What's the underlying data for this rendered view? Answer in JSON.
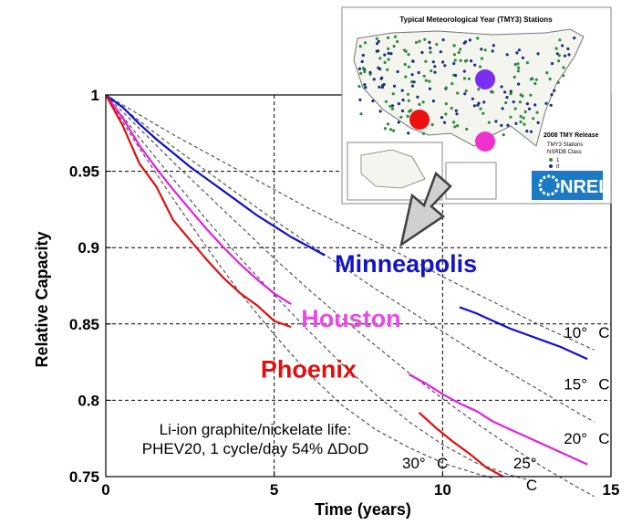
{
  "chart_data": {
    "type": "line",
    "title": "",
    "xlabel": "Time (years)",
    "ylabel": "Relative Capacity",
    "xlim": [
      0,
      15
    ],
    "ylim": [
      0.75,
      1
    ],
    "xticks": [
      0,
      5,
      10,
      15
    ],
    "xtick_labels": [
      "0",
      "5",
      "10",
      "15"
    ],
    "yticks": [
      0.75,
      0.8,
      0.85,
      0.9,
      0.95,
      1
    ],
    "ytick_labels": [
      "0.75",
      "0.8",
      "0.85",
      "0.9",
      "0.95",
      "1"
    ],
    "grid": "dashed at major ticks",
    "series": [
      {
        "name": "Minneapolis",
        "color": "#1010d0",
        "x": [
          0,
          0.5,
          1,
          1.5,
          2,
          2.5,
          3,
          3.5,
          4,
          4.5,
          5,
          5.5,
          6,
          6.5
        ],
        "y": [
          1,
          0.992,
          0.981,
          0.971,
          0.962,
          0.953,
          0.945,
          0.937,
          0.929,
          0.921,
          0.914,
          0.907,
          0.901,
          0.895
        ]
      },
      {
        "name": "Minneapolis (continued)",
        "color": "#1010d0",
        "x": [
          10.5,
          11,
          11.5,
          12,
          12.5,
          13,
          13.5,
          14,
          14.3
        ],
        "y": [
          0.861,
          0.857,
          0.852,
          0.847,
          0.843,
          0.839,
          0.835,
          0.83,
          0.827
        ]
      },
      {
        "name": "Houston",
        "color": "#e020e0",
        "x": [
          0,
          0.5,
          1,
          1.5,
          2,
          2.5,
          3,
          3.5,
          4,
          4.5,
          5,
          5.5
        ],
        "y": [
          1,
          0.985,
          0.967,
          0.952,
          0.938,
          0.925,
          0.912,
          0.9,
          0.889,
          0.879,
          0.87,
          0.863
        ]
      },
      {
        "name": "Houston (continued)",
        "color": "#e020e0",
        "x": [
          9,
          9.5,
          10,
          10.5,
          11,
          11.5,
          12,
          12.5,
          13,
          13.5,
          14,
          14.3
        ],
        "y": [
          0.817,
          0.811,
          0.804,
          0.798,
          0.793,
          0.786,
          0.781,
          0.776,
          0.771,
          0.766,
          0.761,
          0.758
        ]
      },
      {
        "name": "Phoenix",
        "color": "#e01010",
        "x": [
          0,
          0.5,
          1,
          1.5,
          2,
          2.5,
          3,
          3.5,
          4,
          4.5,
          5,
          5.5
        ],
        "y": [
          1,
          0.98,
          0.955,
          0.94,
          0.918,
          0.905,
          0.892,
          0.88,
          0.87,
          0.862,
          0.852,
          0.848
        ]
      },
      {
        "name": "Phoenix (continued)",
        "color": "#e01010",
        "x": [
          9.3,
          9.8,
          10.3,
          10.8,
          11.3,
          11.8
        ],
        "y": [
          0.792,
          0.782,
          0.773,
          0.765,
          0.756,
          0.75
        ]
      },
      {
        "name": "10° C model",
        "color": "#555555",
        "dashed": true,
        "x": [
          0,
          1,
          2,
          3,
          4,
          5,
          6,
          7,
          8,
          9,
          10,
          11,
          12,
          13,
          14,
          14.5
        ],
        "y": [
          1,
          0.987,
          0.974,
          0.962,
          0.95,
          0.938,
          0.926,
          0.915,
          0.904,
          0.893,
          0.881,
          0.87,
          0.859,
          0.848,
          0.838,
          0.833
        ]
      },
      {
        "name": "15° C model",
        "color": "#555555",
        "dashed": true,
        "x": [
          0,
          1,
          2,
          3,
          4,
          5,
          6,
          7,
          8,
          9,
          10,
          11,
          12,
          13,
          14,
          14.5
        ],
        "y": [
          1,
          0.983,
          0.966,
          0.95,
          0.934,
          0.918,
          0.903,
          0.888,
          0.873,
          0.859,
          0.845,
          0.831,
          0.818,
          0.805,
          0.792,
          0.786
        ]
      },
      {
        "name": "20° C model",
        "color": "#555555",
        "dashed": true,
        "x": [
          0,
          1,
          2,
          3,
          4,
          5,
          6,
          7,
          8,
          9,
          10,
          11,
          12,
          13,
          14,
          14.5
        ],
        "y": [
          1,
          0.978,
          0.956,
          0.935,
          0.914,
          0.893,
          0.873,
          0.854,
          0.836,
          0.818,
          0.801,
          0.785,
          0.77,
          0.756,
          0.743,
          0.737
        ]
      },
      {
        "name": "25° C model",
        "color": "#555555",
        "dashed": true,
        "x": [
          0,
          1,
          2,
          3,
          4,
          5,
          6,
          7,
          8,
          9,
          10,
          11,
          12,
          12.7
        ],
        "y": [
          1,
          0.972,
          0.945,
          0.918,
          0.893,
          0.869,
          0.846,
          0.824,
          0.804,
          0.786,
          0.771,
          0.759,
          0.751,
          0.747
        ]
      },
      {
        "name": "30° C model",
        "color": "#555555",
        "dashed": true,
        "x": [
          0,
          1,
          2,
          3,
          4,
          5,
          6,
          7,
          8,
          9,
          10,
          11,
          11.5
        ],
        "y": [
          1,
          0.965,
          0.932,
          0.9,
          0.87,
          0.843,
          0.818,
          0.797,
          0.781,
          0.769,
          0.759,
          0.752,
          0.749
        ]
      }
    ],
    "annotations": {
      "cities": [
        {
          "text": "Minneapolis",
          "color": "#1414c8",
          "x": 6.8,
          "y": 0.884
        },
        {
          "text": "Houston",
          "color": "#e84ce8",
          "x": 5.8,
          "y": 0.848
        },
        {
          "text": "Phoenix",
          "color": "#e01010",
          "x": 4.6,
          "y": 0.815
        }
      ],
      "temps": [
        {
          "text": "10°",
          "unit": "C",
          "x": 13.6,
          "y": 0.841
        },
        {
          "text": "15°",
          "unit": "C",
          "x": 13.6,
          "y": 0.807
        },
        {
          "text": "20°",
          "unit": "C",
          "x": 13.6,
          "y": 0.7715
        },
        {
          "text": "30°",
          "unit": "C",
          "x": 8.8,
          "y": 0.7555
        },
        {
          "text": "25°",
          "unit": "C",
          "x": 12.1,
          "y": 0.7555
        }
      ],
      "note_line1": "Li-ion graphite/nickelate life:",
      "note_line2": "PHEV20, 1 cycle/day 54% ΔDoD"
    }
  },
  "inset_map": {
    "title": "Typical Meteorological Year (TMY3) Stations",
    "release": "2008 TMY Release",
    "legend_line1": "TMY3 Stations",
    "legend_line2": "NSRDB Class",
    "legend_items": [
      "1",
      "II",
      "III"
    ],
    "logo": "NREL",
    "markers": [
      {
        "city": "Phoenix",
        "color": "#ee1111"
      },
      {
        "city": "Houston",
        "color": "#ee33cc"
      },
      {
        "city": "Minneapolis",
        "color": "#7a2ff0"
      }
    ]
  }
}
